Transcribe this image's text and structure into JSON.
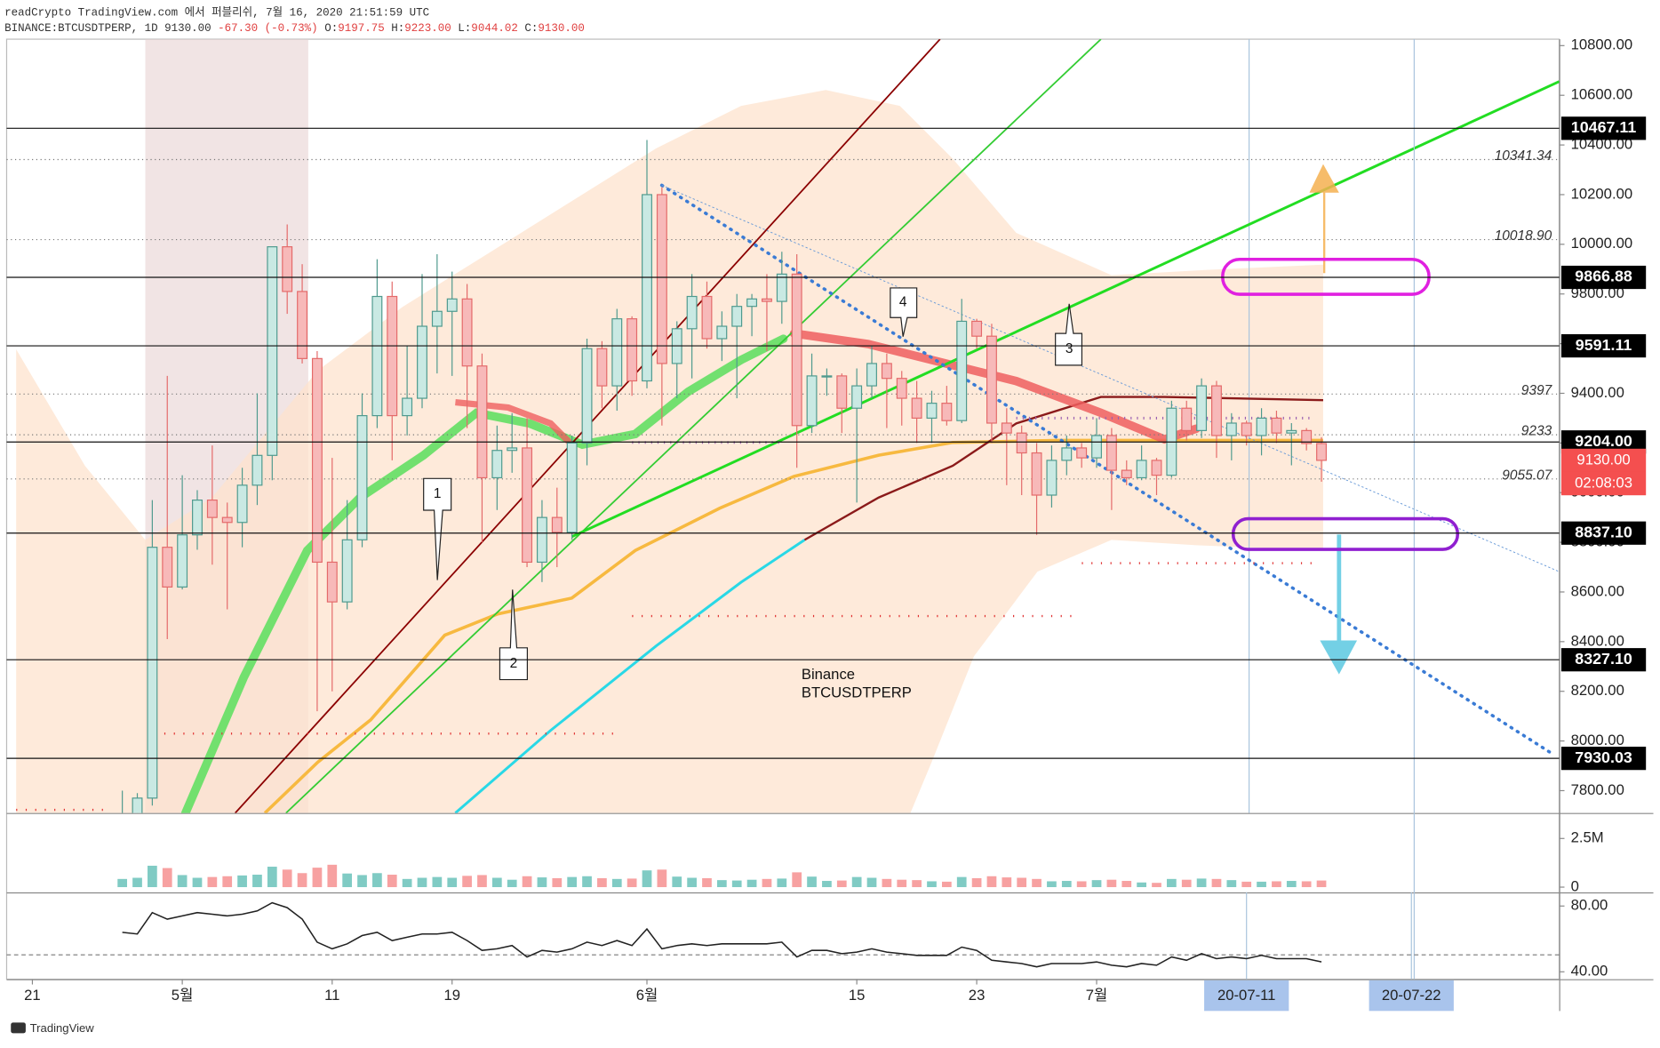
{
  "header": {
    "title": "readCrypto TradingView.com 에서 퍼블리쉬, 7월 16, 2020 21:51:59 UTC",
    "symbol": "BINANCE:BTCUSDTPERP, 1D",
    "price": "9130.00",
    "change": "-67.30 (-0.73%)",
    "ohlc": [
      "O:",
      "9197.75",
      "H:",
      "9223.00",
      "L:",
      "9044.02",
      "C:",
      "9130.00"
    ]
  },
  "footer": {
    "brand": "TradingView"
  },
  "chart_data": [
    {
      "type": "candlestick",
      "x": [
        "2020-04-27",
        "2020-04-28",
        "2020-04-29",
        "2020-04-30",
        "2020-05-01",
        "2020-05-02",
        "2020-05-03",
        "2020-05-04",
        "2020-05-05",
        "2020-05-06",
        "2020-05-07",
        "2020-05-08",
        "2020-05-09",
        "2020-05-10",
        "2020-05-11",
        "2020-05-12",
        "2020-05-13",
        "2020-05-14",
        "2020-05-15",
        "2020-05-16",
        "2020-05-17",
        "2020-05-18",
        "2020-05-19",
        "2020-05-20",
        "2020-05-21",
        "2020-05-22",
        "2020-05-23",
        "2020-05-24",
        "2020-05-25",
        "2020-05-26",
        "2020-05-27",
        "2020-05-28",
        "2020-05-29",
        "2020-05-30",
        "2020-05-31",
        "2020-06-01",
        "2020-06-02",
        "2020-06-03",
        "2020-06-04",
        "2020-06-05",
        "2020-06-06",
        "2020-06-07",
        "2020-06-08",
        "2020-06-09",
        "2020-06-10",
        "2020-06-11",
        "2020-06-12",
        "2020-06-13",
        "2020-06-14",
        "2020-06-15",
        "2020-06-16",
        "2020-06-17",
        "2020-06-18",
        "2020-06-19",
        "2020-06-20",
        "2020-06-21",
        "2020-06-22",
        "2020-06-23",
        "2020-06-24",
        "2020-06-25",
        "2020-06-26",
        "2020-06-27",
        "2020-06-28",
        "2020-06-29",
        "2020-06-30",
        "2020-07-01",
        "2020-07-02",
        "2020-07-03",
        "2020-07-04",
        "2020-07-05",
        "2020-07-06",
        "2020-07-07",
        "2020-07-08",
        "2020-07-09",
        "2020-07-10",
        "2020-07-11",
        "2020-07-12",
        "2020-07-13",
        "2020-07-14",
        "2020-07-15",
        "2020-07-16"
      ],
      "open": [
        7540,
        7700,
        7770,
        8780,
        8620,
        8830,
        8970,
        8900,
        8880,
        9030,
        9150,
        9990,
        9810,
        9540,
        8720,
        8560,
        8810,
        9310,
        9790,
        9310,
        9380,
        9670,
        9730,
        9780,
        9510,
        9060,
        9170,
        9180,
        8720,
        8900,
        8840,
        9200,
        9580,
        9430,
        9700,
        9450,
        10200,
        9520,
        9660,
        9790,
        9620,
        9670,
        9750,
        9780,
        9770,
        9880,
        9270,
        9470,
        9470,
        9340,
        9430,
        9520,
        9460,
        9380,
        9300,
        9360,
        9290,
        9690,
        9630,
        9280,
        9240,
        9160,
        8990,
        9130,
        9180,
        9140,
        9230,
        9090,
        9060,
        9130,
        9070,
        9340,
        9250,
        9430,
        9230,
        9280,
        9230,
        9300,
        9240,
        9250,
        9197.75
      ],
      "high": [
        7800,
        7790,
        8970,
        9470,
        9070,
        9010,
        9190,
        8960,
        9100,
        9400,
        9990,
        10080,
        9920,
        9570,
        9140,
        8970,
        9400,
        9940,
        9850,
        9590,
        9880,
        9960,
        9890,
        9840,
        9560,
        9270,
        9320,
        9300,
        8970,
        9020,
        9230,
        9620,
        9610,
        9740,
        9710,
        10420,
        10230,
        9690,
        9880,
        9850,
        9730,
        9800,
        9800,
        9880,
        9970,
        9960,
        9560,
        9500,
        9480,
        9500,
        9590,
        9560,
        9490,
        9450,
        9410,
        9430,
        9780,
        9700,
        9680,
        9340,
        9270,
        9200,
        9190,
        9230,
        9200,
        9300,
        9260,
        9130,
        9190,
        9140,
        9370,
        9370,
        9460,
        9450,
        9320,
        9290,
        9340,
        9330,
        9280,
        9260,
        9223
      ],
      "low": [
        7500,
        7660,
        7740,
        8410,
        8610,
        8770,
        8710,
        8530,
        8780,
        8950,
        9050,
        9720,
        9520,
        8120,
        8200,
        8530,
        8780,
        9260,
        9130,
        9230,
        9340,
        9480,
        9470,
        9260,
        8800,
        8930,
        9080,
        8700,
        8640,
        8700,
        8810,
        9110,
        9340,
        9330,
        9390,
        9420,
        9270,
        9380,
        9460,
        9580,
        9530,
        9380,
        9630,
        9570,
        9680,
        9100,
        9240,
        9390,
        9240,
        8960,
        9380,
        9260,
        9270,
        9200,
        9200,
        9270,
        9280,
        9580,
        9200,
        9030,
        8990,
        8830,
        8940,
        9070,
        9100,
        9100,
        8930,
        9030,
        9050,
        8990,
        9060,
        9210,
        9220,
        9140,
        9130,
        9190,
        9150,
        9200,
        9110,
        9170,
        9044.02
      ],
      "close": [
        7700,
        7770,
        8780,
        8620,
        8830,
        8970,
        8900,
        8880,
        9030,
        9150,
        9990,
        9810,
        9540,
        8720,
        8560,
        8810,
        9310,
        9790,
        9310,
        9380,
        9670,
        9730,
        9780,
        9510,
        9060,
        9170,
        9180,
        8720,
        8900,
        8840,
        9200,
        9580,
        9430,
        9700,
        9450,
        10200,
        9520,
        9660,
        9790,
        9620,
        9670,
        9750,
        9780,
        9770,
        9880,
        9270,
        9470,
        9470,
        9340,
        9430,
        9520,
        9460,
        9380,
        9300,
        9360,
        9290,
        9690,
        9630,
        9280,
        9240,
        9160,
        8990,
        9130,
        9180,
        9140,
        9230,
        9090,
        9060,
        9130,
        9070,
        9340,
        9250,
        9430,
        9230,
        9280,
        9230,
        9300,
        9240,
        9250,
        9197.75,
        9130
      ],
      "up_color": "#c9e9e3",
      "down_color": "#f7b9b9",
      "up_border": "#4f9a8e",
      "down_border": "#e46a6a",
      "xlim": [
        "2020-04-19",
        "2020-08-01"
      ],
      "xticks": [
        {
          "value": "2020-04-21",
          "label": "21"
        },
        {
          "value": "2020-05-01",
          "label": "5월"
        },
        {
          "value": "2020-05-11",
          "label": "11"
        },
        {
          "value": "2020-05-19",
          "label": "19"
        },
        {
          "value": "2020-06-01",
          "label": "6월"
        },
        {
          "value": "2020-06-15",
          "label": "15"
        },
        {
          "value": "2020-06-23",
          "label": "23"
        },
        {
          "value": "2020-07-01",
          "label": "7월"
        }
      ],
      "cursor_ticks": [
        {
          "value": "2020-07-11",
          "label": "20-07-11"
        },
        {
          "value": "2020-07-22",
          "label": "20-07-22"
        }
      ],
      "ylim": [
        7710,
        10826
      ],
      "yticks": [
        {
          "value": 7800,
          "label": "7800.00"
        },
        {
          "value": 8000,
          "label": "8000.00"
        },
        {
          "value": 8200,
          "label": "8200.00"
        },
        {
          "value": 8400,
          "label": "8400.00"
        },
        {
          "value": 8600,
          "label": "8600.00"
        },
        {
          "value": 8800,
          "label": "8800.00"
        },
        {
          "value": 9000,
          "label": "9000.00"
        },
        {
          "value": 9200,
          "label": "9200.00"
        },
        {
          "value": 9400,
          "label": "9400.00"
        },
        {
          "value": 9600,
          "label": "9600.00"
        },
        {
          "value": 9800,
          "label": "9800.00"
        },
        {
          "value": 10000,
          "label": "10000.00"
        },
        {
          "value": 10200,
          "label": "10200.00"
        },
        {
          "value": 10400,
          "label": "10400.00"
        },
        {
          "value": 10600,
          "label": "10600.00"
        },
        {
          "value": 10800,
          "label": "10800.00"
        }
      ],
      "levels": [
        10467.11,
        9866.88,
        9591.11,
        {
          "value": 9204,
          "label": "9204.00"
        },
        {
          "value": 8837.1,
          "label": "8837.10"
        },
        {
          "value": 8327.1,
          "label": "8327.10"
        },
        7930.03
      ],
      "price_lines": [
        10341.34,
        {
          "value": 10018.9,
          "label": "10018.90"
        },
        9397,
        9233,
        9055.07
      ],
      "last_price": {
        "value": 9130,
        "label": "9130.00"
      },
      "countdown": "02:08:03",
      "labels": [
        "Binance",
        "BTCUSDTPERP"
      ],
      "callouts": [
        "1",
        "2",
        "3",
        "4"
      ]
    },
    {
      "type": "bar",
      "values": [
        420000,
        480000,
        1100000,
        980000,
        620000,
        480000,
        520000,
        560000,
        600000,
        640000,
        1050000,
        900000,
        720000,
        1000000,
        1150000,
        700000,
        620000,
        720000,
        640000,
        420000,
        480000,
        520000,
        480000,
        580000,
        620000,
        480000,
        380000,
        560000,
        500000,
        460000,
        520000,
        560000,
        460000,
        420000,
        440000,
        860000,
        900000,
        540000,
        480000,
        460000,
        360000,
        340000,
        380000,
        420000,
        440000,
        760000,
        540000,
        320000,
        340000,
        520000,
        480000,
        420000,
        380000,
        360000,
        300000,
        280000,
        520000,
        460000,
        560000,
        500000,
        480000,
        420000,
        300000,
        320000,
        300000,
        360000,
        380000,
        320000,
        240000,
        220000,
        420000,
        380000,
        440000,
        420000,
        360000,
        280000,
        280000,
        300000,
        320000,
        300000,
        340000
      ],
      "up_color": "#80cbc4",
      "down_color": "#f7a1a1",
      "ylim": [
        -270000,
        3700000
      ],
      "yticks": [
        {
          "value": 2500000,
          "label": "2.5M"
        },
        0
      ]
    },
    {
      "type": "line",
      "values": [
        64,
        63,
        76,
        72,
        74,
        76,
        75,
        74,
        75,
        77,
        82,
        79,
        72,
        58,
        54,
        57,
        62,
        64,
        59,
        61,
        63,
        63,
        64,
        59,
        53,
        54,
        56,
        49,
        53,
        52,
        54,
        58,
        56,
        59,
        56,
        66,
        54,
        56,
        57,
        56,
        57,
        57,
        57,
        57,
        58,
        49,
        53,
        53,
        51,
        52,
        54,
        52,
        51,
        50,
        50,
        50,
        55,
        53,
        47,
        46,
        45,
        43,
        45,
        45,
        45,
        46,
        44,
        43,
        45,
        44,
        49,
        47,
        51,
        48,
        49,
        48,
        50,
        48,
        48,
        48,
        46
      ],
      "color": "#222222",
      "ylim": [
        35.5,
        87
      ],
      "yticks": [
        {
          "value": 80,
          "label": "80.00"
        },
        {
          "value": 40,
          "label": "40.00"
        }
      ]
    }
  ]
}
